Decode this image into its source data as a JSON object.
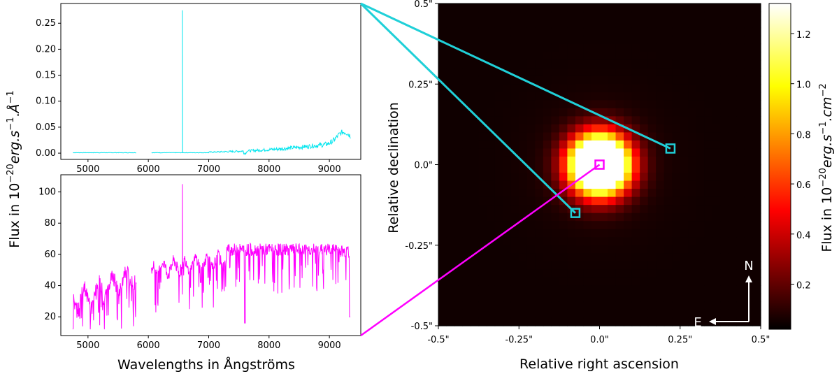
{
  "colors": {
    "spectrum_top": "#00e5ee",
    "spectrum_bottom": "#ff00ff",
    "box_cyan": "#20d0d8",
    "box_magenta": "#ff00ff",
    "arrow": "#ffffff"
  },
  "chart_data": [
    {
      "id": "spectrum-top",
      "type": "line",
      "series": [
        {
          "name": "cyan-pixel-spectrum",
          "x_range": [
            4750,
            9350
          ],
          "gaps": [
            [
              5800,
              6050
            ]
          ],
          "peak": {
            "x": 6563,
            "y": 0.275
          },
          "baseline": 0.0,
          "end_level": 0.04
        }
      ],
      "xlim": [
        4550,
        9520
      ],
      "ylim": [
        -0.012,
        0.288
      ],
      "xticks": [
        5000,
        6000,
        7000,
        8000,
        9000
      ],
      "yticks": [
        0.0,
        0.05,
        0.1,
        0.15,
        0.2,
        0.25
      ],
      "ytick_labels": [
        "0.00",
        "0.05",
        "0.10",
        "0.15",
        "0.20",
        "0.25"
      ]
    },
    {
      "id": "spectrum-bottom",
      "type": "line",
      "series": [
        {
          "name": "magenta-pixel-spectrum",
          "x_range": [
            4750,
            9350
          ],
          "gaps": [
            [
              5800,
              6050
            ]
          ],
          "peak": {
            "x": 6563,
            "y": 105
          },
          "plateau": 63,
          "min_y": 12
        }
      ],
      "xlim": [
        4550,
        9520
      ],
      "ylim": [
        8,
        111
      ],
      "xticks": [
        5000,
        6000,
        7000,
        8000,
        9000
      ],
      "yticks": [
        20,
        40,
        60,
        80,
        100
      ],
      "ytick_labels": [
        "20",
        "40",
        "60",
        "80",
        "100"
      ]
    },
    {
      "id": "flux-map",
      "type": "heatmap",
      "grid": 40,
      "source_center": [
        0.0,
        0.0
      ],
      "source_sigma": 0.06,
      "peak_flux": 1.3,
      "xlim": [
        -0.5,
        0.5
      ],
      "ylim": [
        -0.5,
        0.5
      ],
      "xticks": [
        -0.5,
        -0.25,
        0.0,
        0.25,
        0.5
      ],
      "yticks": [
        -0.5,
        -0.25,
        0.0,
        0.25,
        0.5
      ],
      "xtick_labels": [
        "-0.5\"",
        "-0.25\"",
        "0.0\"",
        "0.25\"",
        "0.5\""
      ],
      "ytick_labels": [
        "-0.5\"",
        "-0.25\"",
        "0.0\"",
        "0.25\"",
        "0.5\""
      ],
      "markers": [
        {
          "name": "cyan-pixel-1",
          "x": 0.22,
          "y": 0.05,
          "color": "cyan"
        },
        {
          "name": "cyan-pixel-2",
          "x": -0.075,
          "y": -0.15,
          "color": "cyan"
        },
        {
          "name": "magenta-pixel",
          "x": 0.0,
          "y": 0.0,
          "color": "magenta"
        }
      ]
    },
    {
      "id": "colorbar",
      "type": "colorbar",
      "range": [
        0.02,
        1.32
      ],
      "ticks": [
        0.2,
        0.4,
        0.6,
        0.8,
        1.0,
        1.2
      ],
      "tick_labels": [
        "0.2",
        "0.4",
        "0.6",
        "0.8",
        "1.0",
        "1.2"
      ]
    }
  ],
  "labels": {
    "spectra_ylabel_prefix": "Flux in 10",
    "spectra_ylabel_exp1": "−20",
    "spectra_ylabel_unit": "erg.s",
    "spectra_ylabel_exp2": "−1",
    "spectra_ylabel_sep": ".",
    "spectra_ylabel_unit2": "Å",
    "spectra_ylabel_exp3": "−1",
    "spectra_xlabel": "Wavelengths in Ångströms",
    "map_xlabel": "Relative right ascension",
    "map_ylabel": "Relative declination",
    "colorbar_label_prefix": "Flux in 10",
    "colorbar_label_exp1": "−20",
    "colorbar_label_unit": "erg.s",
    "colorbar_label_exp2": "−1",
    "colorbar_label_sep": ".cm",
    "colorbar_label_exp3": "−2",
    "north": "N",
    "east": "E"
  }
}
